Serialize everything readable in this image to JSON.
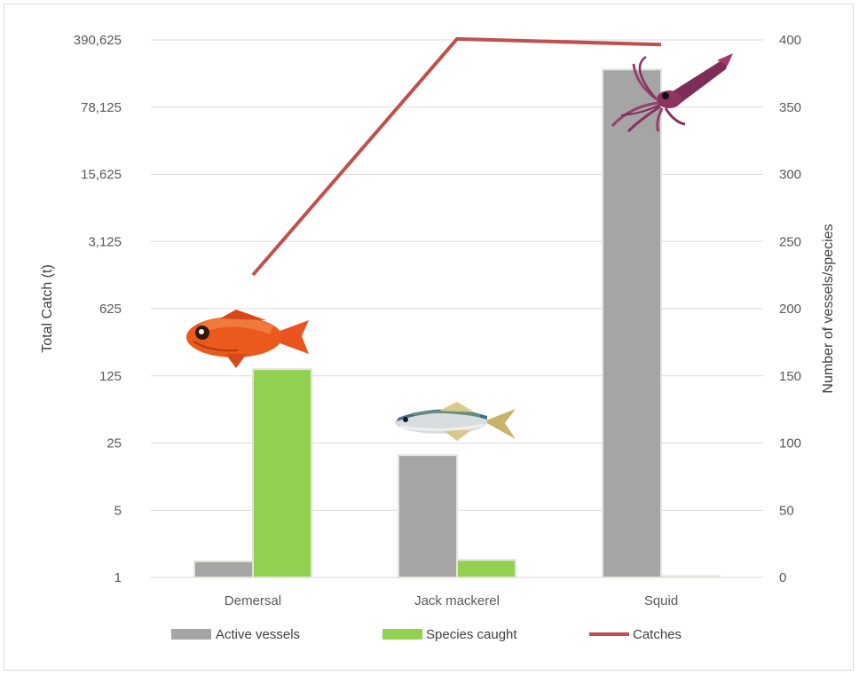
{
  "chart_data": {
    "type": "bar",
    "categories": [
      "Demersal",
      "Jack mackerel",
      "Squid"
    ],
    "series": [
      {
        "name": "Active vessels",
        "type": "bar",
        "axis": "right",
        "color": "#a5a5a5",
        "values": [
          12,
          91,
          378
        ]
      },
      {
        "name": "Species caught",
        "type": "bar",
        "axis": "right",
        "color": "#92d050",
        "values": [
          155,
          13,
          1
        ]
      },
      {
        "name": "Catches",
        "type": "line",
        "axis": "left",
        "color": "#c0504d",
        "values": [
          1400,
          400000,
          350000
        ]
      }
    ],
    "left_axis": {
      "label": "Total Catch (t)",
      "scale": "log5",
      "ticks": [
        "1",
        "5",
        "25",
        "125",
        "625",
        "3,125",
        "15,625",
        "78,125",
        "390,625"
      ],
      "tick_values": [
        1,
        5,
        25,
        125,
        625,
        3125,
        15625,
        78125,
        390625
      ],
      "ylim": [
        1,
        390625
      ]
    },
    "right_axis": {
      "label": "Number of vessels/species",
      "ticks": [
        "0",
        "50",
        "100",
        "150",
        "200",
        "250",
        "300",
        "350",
        "400"
      ],
      "tick_values": [
        0,
        50,
        100,
        150,
        200,
        250,
        300,
        350,
        400
      ],
      "ylim": [
        0,
        400
      ]
    },
    "grid": true,
    "legend_position": "bottom",
    "icons": [
      "orange-roughy-fish-icon",
      "jack-mackerel-fish-icon",
      "squid-icon"
    ]
  }
}
